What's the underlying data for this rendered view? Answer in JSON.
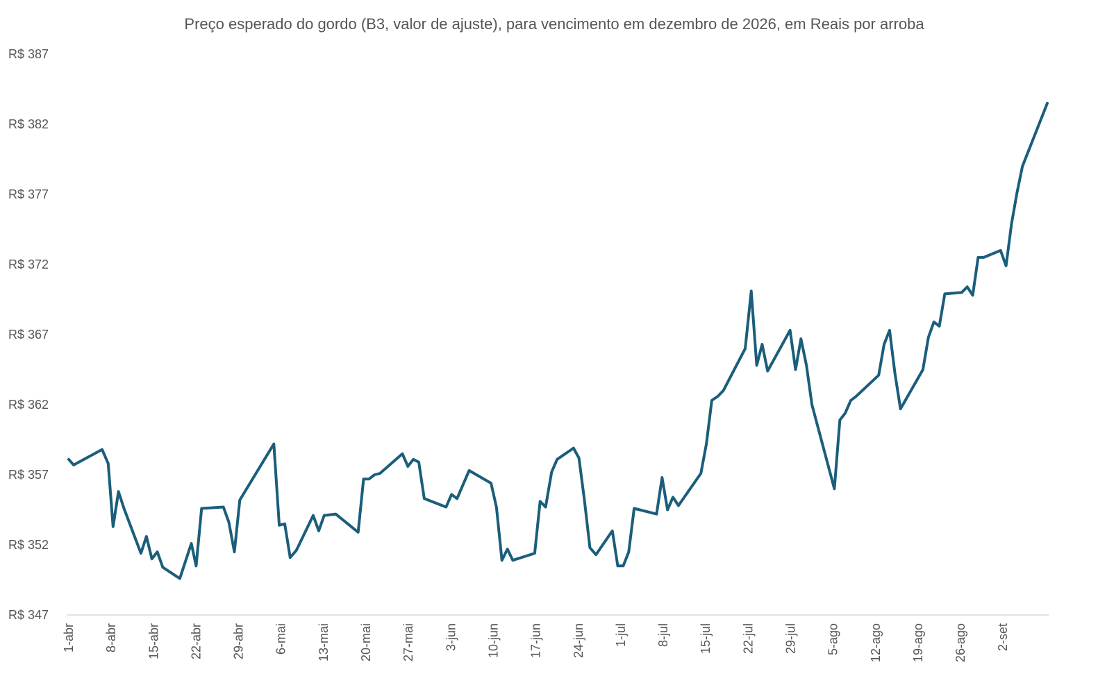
{
  "chart_data": {
    "type": "line",
    "title": "Preço esperado do gordo (B3, valor de ajuste), para vencimento em dezembro de 2026, em Reais por arroba",
    "xlabel": "",
    "ylabel": "",
    "ylim": [
      347,
      387
    ],
    "yticks": [
      347,
      352,
      357,
      362,
      367,
      372,
      377,
      382,
      387
    ],
    "y_tick_labels": [
      "R$ 347",
      "R$ 352",
      "R$ 357",
      "R$ 362",
      "R$ 367",
      "R$ 372",
      "R$ 377",
      "R$ 382",
      "R$ 387"
    ],
    "x_tick_labels": [
      "1-abr",
      "8-abr",
      "15-abr",
      "22-abr",
      "29-abr",
      "6-mai",
      "13-mai",
      "20-mai",
      "27-mai",
      "3-jun",
      "10-jun",
      "17-jun",
      "24-jun",
      "1-jul",
      "8-jul",
      "15-jul",
      "22-jul",
      "29-jul",
      "5-ago",
      "12-ago",
      "19-ago",
      "26-ago",
      "2-set"
    ],
    "x_tick_days": [
      0,
      7,
      14,
      21,
      28,
      35,
      42,
      49,
      56,
      63,
      70,
      77,
      84,
      91,
      98,
      105,
      112,
      119,
      126,
      133,
      140,
      147,
      154
    ],
    "line_color": "#1b5e7b",
    "grid": false,
    "series": [
      {
        "values": [
          [
            0,
            358.1
          ],
          [
            0.8,
            357.7
          ],
          [
            5.5,
            358.8
          ],
          [
            6.5,
            357.8
          ],
          [
            7.3,
            353.3
          ],
          [
            8.2,
            355.8
          ],
          [
            9.1,
            354.6
          ],
          [
            11.9,
            351.4
          ],
          [
            12.8,
            352.6
          ],
          [
            13.7,
            351.0
          ],
          [
            14.6,
            351.5
          ],
          [
            15.5,
            350.4
          ],
          [
            18.3,
            349.6
          ],
          [
            20.2,
            352.1
          ],
          [
            21.0,
            350.5
          ],
          [
            21.9,
            354.6
          ],
          [
            25.5,
            354.7
          ],
          [
            26.4,
            353.6
          ],
          [
            27.3,
            351.5
          ],
          [
            28.2,
            355.2
          ],
          [
            33.8,
            359.2
          ],
          [
            34.7,
            353.4
          ],
          [
            35.6,
            353.5
          ],
          [
            36.5,
            351.1
          ],
          [
            37.5,
            351.6
          ],
          [
            40.3,
            354.1
          ],
          [
            41.2,
            353.0
          ],
          [
            42.1,
            354.1
          ],
          [
            44.0,
            354.2
          ],
          [
            47.7,
            352.9
          ],
          [
            48.6,
            356.7
          ],
          [
            49.5,
            356.7
          ],
          [
            50.4,
            357.0
          ],
          [
            51.3,
            357.1
          ],
          [
            55.0,
            358.5
          ],
          [
            55.9,
            357.6
          ],
          [
            56.8,
            358.1
          ],
          [
            57.7,
            357.9
          ],
          [
            58.6,
            355.3
          ],
          [
            62.2,
            354.7
          ],
          [
            63.1,
            355.6
          ],
          [
            64.0,
            355.3
          ],
          [
            66.0,
            357.3
          ],
          [
            69.6,
            356.4
          ],
          [
            70.5,
            354.7
          ],
          [
            71.4,
            350.9
          ],
          [
            72.3,
            351.7
          ],
          [
            73.2,
            350.9
          ],
          [
            76.8,
            351.4
          ],
          [
            77.7,
            355.1
          ],
          [
            78.6,
            354.7
          ],
          [
            79.6,
            357.2
          ],
          [
            80.5,
            358.1
          ],
          [
            83.2,
            358.9
          ],
          [
            84.1,
            358.2
          ],
          [
            85.0,
            355.2
          ],
          [
            85.9,
            351.8
          ],
          [
            86.9,
            351.3
          ],
          [
            89.6,
            353.0
          ],
          [
            90.5,
            350.5
          ],
          [
            91.4,
            350.5
          ],
          [
            92.3,
            351.5
          ],
          [
            93.2,
            354.6
          ],
          [
            96.9,
            354.2
          ],
          [
            97.8,
            356.8
          ],
          [
            98.7,
            354.5
          ],
          [
            99.6,
            355.4
          ],
          [
            100.5,
            354.8
          ],
          [
            104.2,
            357.1
          ],
          [
            105.1,
            359.2
          ],
          [
            106.0,
            362.3
          ],
          [
            107.0,
            362.6
          ],
          [
            107.9,
            363.0
          ],
          [
            111.5,
            366.0
          ],
          [
            112.5,
            370.1
          ],
          [
            113.4,
            364.8
          ],
          [
            114.3,
            366.3
          ],
          [
            115.2,
            364.4
          ],
          [
            118.9,
            367.3
          ],
          [
            119.8,
            364.5
          ],
          [
            120.7,
            366.7
          ],
          [
            121.6,
            364.8
          ],
          [
            122.5,
            362.0
          ],
          [
            126.2,
            356.0
          ],
          [
            127.1,
            360.9
          ],
          [
            128.0,
            361.4
          ],
          [
            128.9,
            362.3
          ],
          [
            129.8,
            362.6
          ],
          [
            133.5,
            364.1
          ],
          [
            134.4,
            366.3
          ],
          [
            135.3,
            367.3
          ],
          [
            136.2,
            364.2
          ],
          [
            137.1,
            361.7
          ],
          [
            140.8,
            364.5
          ],
          [
            141.7,
            366.8
          ],
          [
            142.6,
            367.9
          ],
          [
            143.5,
            367.6
          ],
          [
            144.4,
            369.9
          ],
          [
            147.2,
            370.0
          ],
          [
            148.1,
            370.4
          ],
          [
            149.0,
            369.8
          ],
          [
            149.9,
            372.5
          ],
          [
            150.8,
            372.5
          ],
          [
            153.6,
            373.0
          ],
          [
            154.5,
            371.9
          ],
          [
            155.4,
            374.9
          ],
          [
            156.3,
            377.1
          ],
          [
            157.2,
            379.0
          ],
          [
            161.3,
            383.5
          ]
        ]
      }
    ]
  }
}
